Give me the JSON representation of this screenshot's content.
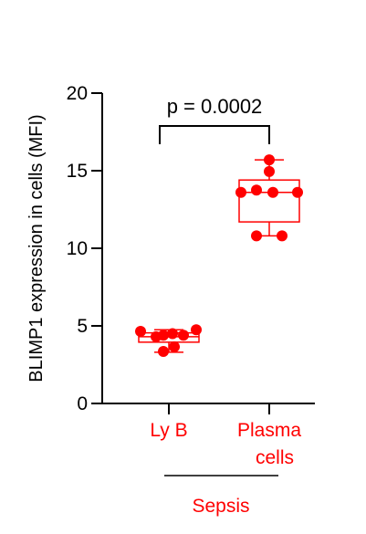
{
  "chart_data": {
    "type": "box",
    "ylabel": "BLIMP1 expression in cells (MFI)",
    "ylim": [
      0,
      20
    ],
    "yticks": [
      "0",
      "5",
      "10",
      "15",
      "20"
    ],
    "yticks_values": [
      0,
      5,
      10,
      15,
      20
    ],
    "categories": [
      "Ly B",
      "Plasma cells"
    ],
    "series_color": "#ff0000",
    "boxes": [
      {
        "category": "Ly B",
        "min": 3.3,
        "q1": 3.95,
        "median": 4.3,
        "q3": 4.55,
        "max": 4.75,
        "points": [
          4.65,
          4.3,
          4.4,
          4.5,
          4.4,
          4.75,
          3.65,
          3.35
        ]
      },
      {
        "category": "Plasma cells",
        "min": 10.8,
        "q1": 11.7,
        "median": 13.6,
        "q3": 14.4,
        "max": 15.7,
        "points": [
          15.7,
          14.95,
          13.6,
          13.75,
          13.6,
          13.6,
          10.8,
          10.8
        ]
      }
    ],
    "annotation": "p = 0.0002",
    "group_label": "Sepsis"
  }
}
